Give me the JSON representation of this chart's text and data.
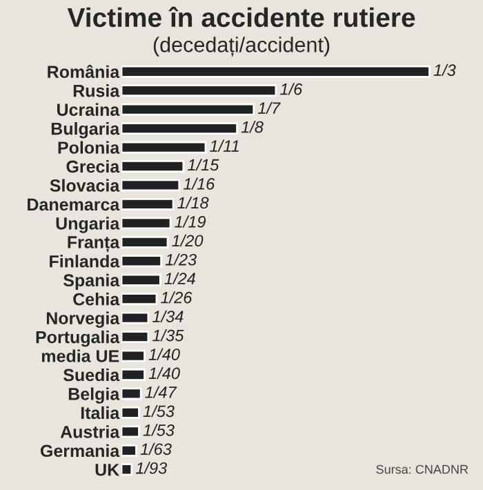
{
  "chart_data": {
    "type": "bar",
    "orientation": "horizontal",
    "title": "Victime în accidente rutiere",
    "subtitle": "(decedați/accident)",
    "categories": [
      "România",
      "Rusia",
      "Ucraina",
      "Bulgaria",
      "Polonia",
      "Grecia",
      "Slovacia",
      "Danemarca",
      "Ungaria",
      "Franța",
      "Finlanda",
      "Spania",
      "Cehia",
      "Norvegia",
      "Portugalia",
      "media UE",
      "Suedia",
      "Belgia",
      "Italia",
      "Austria",
      "Germania",
      "UK"
    ],
    "values": [
      0.333,
      0.167,
      0.143,
      0.125,
      0.091,
      0.067,
      0.0625,
      0.056,
      0.053,
      0.05,
      0.043,
      0.042,
      0.038,
      0.029,
      0.029,
      0.025,
      0.025,
      0.021,
      0.019,
      0.019,
      0.016,
      0.011
    ],
    "value_labels": [
      "1/3",
      "1/6",
      "1/7",
      "1/8",
      "1/11",
      "1/15",
      "1/16",
      "1/18",
      "1/19",
      "1/20",
      "1/23",
      "1/24",
      "1/26",
      "1/34",
      "1/35",
      "1/40",
      "1/40",
      "1/47",
      "1/53",
      "1/53",
      "1/63",
      "1/93"
    ],
    "color": "#222222",
    "annotations": [
      "Sursa: CNADNR"
    ],
    "grid": false,
    "legend": false
  }
}
